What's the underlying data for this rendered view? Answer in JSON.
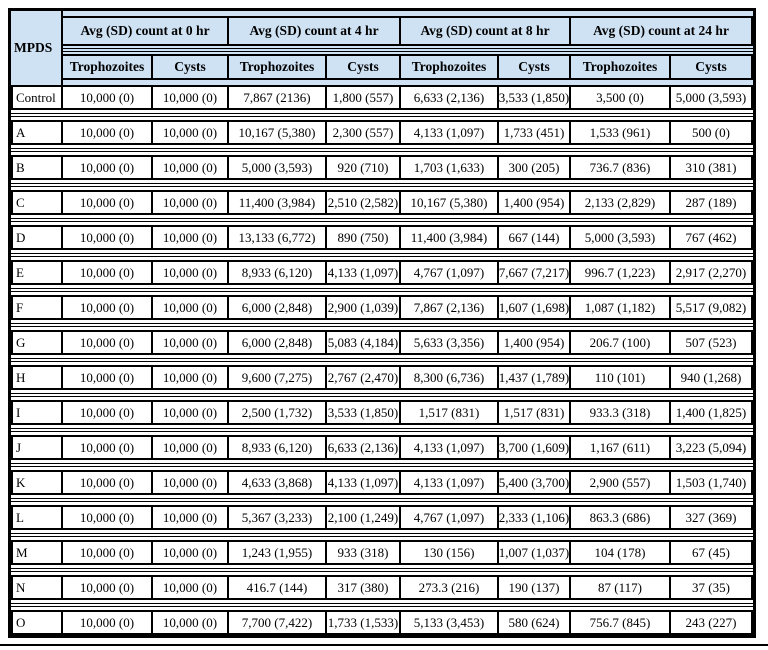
{
  "colors": {
    "header_bg": "#cfe2f4",
    "border": "#000000",
    "background": "#ffffff"
  },
  "chart_data": {
    "type": "table",
    "corner_label": "MPDS",
    "column_groups": [
      "Avg (SD) count at 0 hr",
      "Avg (SD) count at 4 hr",
      "Avg (SD) count at 8 hr",
      "Avg (SD) count at 24 hr"
    ],
    "subcolumns": [
      "Trophozoites",
      "Cysts"
    ],
    "rows": [
      {
        "label": "Control",
        "values": [
          "10,000 (0)",
          "10,000 (0)",
          "7,867 (2136)",
          "1,800 (557)",
          "6,633 (2,136)",
          "3,533 (1,850)",
          "3,500 (0)",
          "5,000 (3,593)"
        ]
      },
      {
        "label": "A",
        "values": [
          "10,000 (0)",
          "10,000 (0)",
          "10,167 (5,380)",
          "2,300 (557)",
          "4,133 (1,097)",
          "1,733 (451)",
          "1,533 (961)",
          "500 (0)"
        ]
      },
      {
        "label": "B",
        "values": [
          "10,000 (0)",
          "10,000 (0)",
          "5,000 (3,593)",
          "920 (710)",
          "1,703 (1,633)",
          "300 (205)",
          "736.7 (836)",
          "310 (381)"
        ]
      },
      {
        "label": "C",
        "values": [
          "10,000 (0)",
          "10,000 (0)",
          "11,400 (3,984)",
          "2,510 (2,582)",
          "10,167 (5,380)",
          "1,400 (954)",
          "2,133 (2,829)",
          "287 (189)"
        ]
      },
      {
        "label": "D",
        "values": [
          "10,000 (0)",
          "10,000 (0)",
          "13,133 (6,772)",
          "890 (750)",
          "11,400 (3,984)",
          "667 (144)",
          "5,000 (3,593)",
          "767 (462)"
        ]
      },
      {
        "label": "E",
        "values": [
          "10,000 (0)",
          "10,000 (0)",
          "8,933 (6,120)",
          "4,133 (1,097)",
          "4,767 (1,097)",
          "7,667 (7,217)",
          "996.7 (1,223)",
          "2,917 (2,270)"
        ]
      },
      {
        "label": "F",
        "values": [
          "10,000 (0)",
          "10,000 (0)",
          "6,000 (2,848)",
          "2,900 (1,039)",
          "7,867 (2,136)",
          "1,607 (1,698)",
          "1,087 (1,182)",
          "5,517 (9,082)"
        ]
      },
      {
        "label": "G",
        "values": [
          "10,000 (0)",
          "10,000 (0)",
          "6,000 (2,848)",
          "5,083 (4,184)",
          "5,633 (3,356)",
          "1,400 (954)",
          "206.7 (100)",
          "507 (523)"
        ]
      },
      {
        "label": "H",
        "values": [
          "10,000 (0)",
          "10,000 (0)",
          "9,600 (7,275)",
          "2,767 (2,470)",
          "8,300 (6,736)",
          "1,437 (1,789)",
          "110 (101)",
          "940 (1,268)"
        ]
      },
      {
        "label": "I",
        "values": [
          "10,000 (0)",
          "10,000 (0)",
          "2,500 (1,732)",
          "3,533 (1,850)",
          "1,517 (831)",
          "1,517 (831)",
          "933.3 (318)",
          "1,400 (1,825)"
        ]
      },
      {
        "label": "J",
        "values": [
          "10,000 (0)",
          "10,000 (0)",
          "8,933 (6,120)",
          "6,633 (2,136)",
          "4,133 (1,097)",
          "3,700 (1,609)",
          "1,167 (611)",
          "3,223 (5,094)"
        ]
      },
      {
        "label": "K",
        "values": [
          "10,000 (0)",
          "10,000 (0)",
          "4,633 (3,868)",
          "4,133 (1,097)",
          "4,133 (1,097)",
          "5,400 (3,700)",
          "2,900 (557)",
          "1,503 (1,740)"
        ]
      },
      {
        "label": "L",
        "values": [
          "10,000 (0)",
          "10,000 (0)",
          "5,367 (3,233)",
          "2,100 (1,249)",
          "4,767 (1,097)",
          "2,333 (1,106)",
          "863.3 (686)",
          "327 (369)"
        ]
      },
      {
        "label": "M",
        "values": [
          "10,000 (0)",
          "10,000 (0)",
          "1,243 (1,955)",
          "933 (318)",
          "130 (156)",
          "1,007 (1,037)",
          "104 (178)",
          "67 (45)"
        ]
      },
      {
        "label": "N",
        "values": [
          "10,000 (0)",
          "10,000 (0)",
          "416.7 (144)",
          "317 (380)",
          "273.3 (216)",
          "190 (137)",
          "87 (117)",
          "37 (35)"
        ]
      },
      {
        "label": "O",
        "values": [
          "10,000 (0)",
          "10,000 (0)",
          "7,700 (7,422)",
          "1,733 (1,533)",
          "5,133 (3,453)",
          "580 (624)",
          "756.7 (845)",
          "243 (227)"
        ]
      }
    ]
  }
}
